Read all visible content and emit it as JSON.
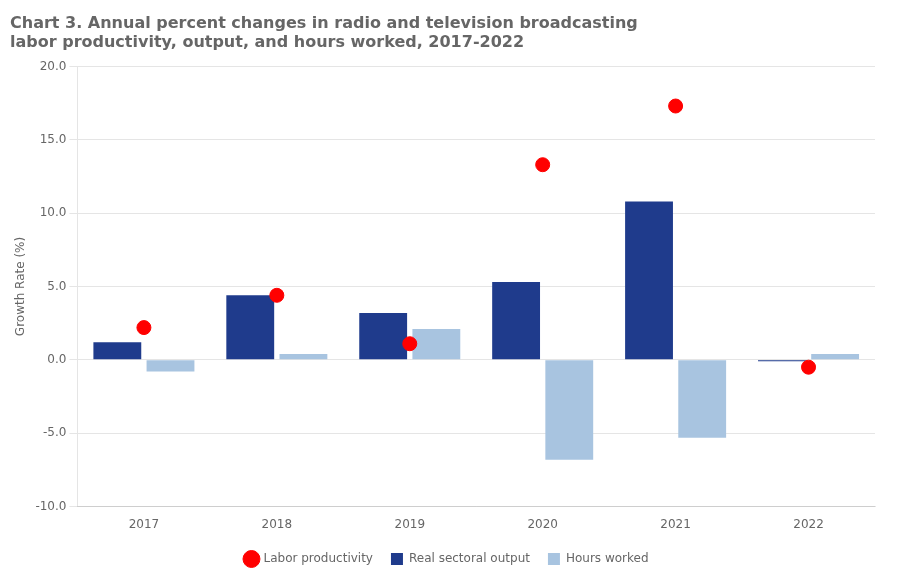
{
  "chart_data": {
    "type": "bar",
    "title": [
      "Chart 3. Annual percent changes in radio and television broadcasting",
      "labor productivity, output, and hours worked, 2017-2022"
    ],
    "ylabel": "Growth Rate (%)",
    "categories": [
      "2017",
      "2018",
      "2019",
      "2020",
      "2021",
      "2022"
    ],
    "series": [
      {
        "name": "Real sectoral output",
        "type": "bar",
        "color": "#1F3B8C",
        "values": [
          1.2,
          4.4,
          3.2,
          5.3,
          10.8,
          -0.1
        ]
      },
      {
        "name": "Hours worked",
        "type": "bar",
        "color": "#A8C4E0",
        "values": [
          -0.8,
          0.4,
          2.1,
          -6.8,
          -5.3,
          0.4
        ]
      },
      {
        "name": "Labor productivity",
        "type": "scatter",
        "marker": "circle",
        "color": "#FF0000",
        "values": [
          2.2,
          4.4,
          1.1,
          13.3,
          17.3,
          -0.5
        ]
      }
    ],
    "ylim": [
      -10.0,
      20.0
    ],
    "yticks": [
      {
        "value": -10.0,
        "label": "-10.0"
      },
      {
        "value": -5.0,
        "label": "-5.0"
      },
      {
        "value": 0.0,
        "label": "0.0"
      },
      {
        "value": 5.0,
        "label": "5.0"
      },
      {
        "value": 10.0,
        "label": "10.0"
      },
      {
        "value": 15.0,
        "label": "15.0"
      },
      {
        "value": 20.0,
        "label": "20.0"
      }
    ],
    "grid": true,
    "legend": "bottom"
  }
}
